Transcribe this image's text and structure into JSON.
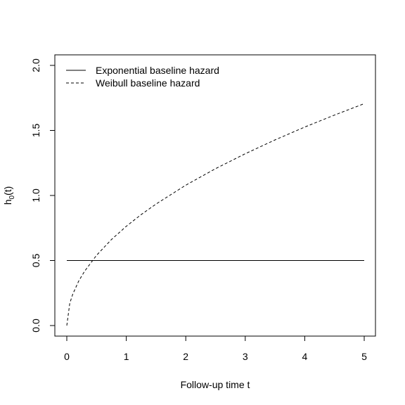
{
  "chart_data": {
    "type": "line",
    "title": "",
    "xlabel": "Follow-up time t",
    "ylabel": "h0(t)",
    "ylabel_parts": {
      "base": "h",
      "sub": "0",
      "rest": "(t)"
    },
    "xlim": [
      0,
      5
    ],
    "ylim": [
      0,
      2
    ],
    "x_ticks": [
      0,
      1,
      2,
      3,
      4,
      5
    ],
    "x_tick_labels": [
      "0",
      "1",
      "2",
      "3",
      "4",
      "5"
    ],
    "y_ticks": [
      0,
      0.5,
      1,
      1.5,
      2
    ],
    "y_tick_labels": [
      "0.0",
      "0.5",
      "1.0",
      "1.5",
      "2.0"
    ],
    "grid": false,
    "legend_position": "top-left",
    "series": [
      {
        "name": "Exponential baseline hazard",
        "line_style": "solid",
        "color": "#000000",
        "x": [
          0,
          5
        ],
        "y": [
          0.5,
          0.5
        ]
      },
      {
        "name": "Weibull baseline hazard",
        "line_style": "dashed",
        "color": "#000000",
        "x": [
          0,
          0.05,
          0.1,
          0.2,
          0.3,
          0.5,
          0.75,
          1,
          1.25,
          1.5,
          2,
          2.5,
          3,
          3.5,
          4,
          4.5,
          5
        ],
        "y": [
          0,
          0.171,
          0.241,
          0.342,
          0.418,
          0.54,
          0.661,
          0.763,
          0.853,
          0.934,
          1.079,
          1.206,
          1.321,
          1.427,
          1.526,
          1.618,
          1.706
        ]
      }
    ]
  }
}
